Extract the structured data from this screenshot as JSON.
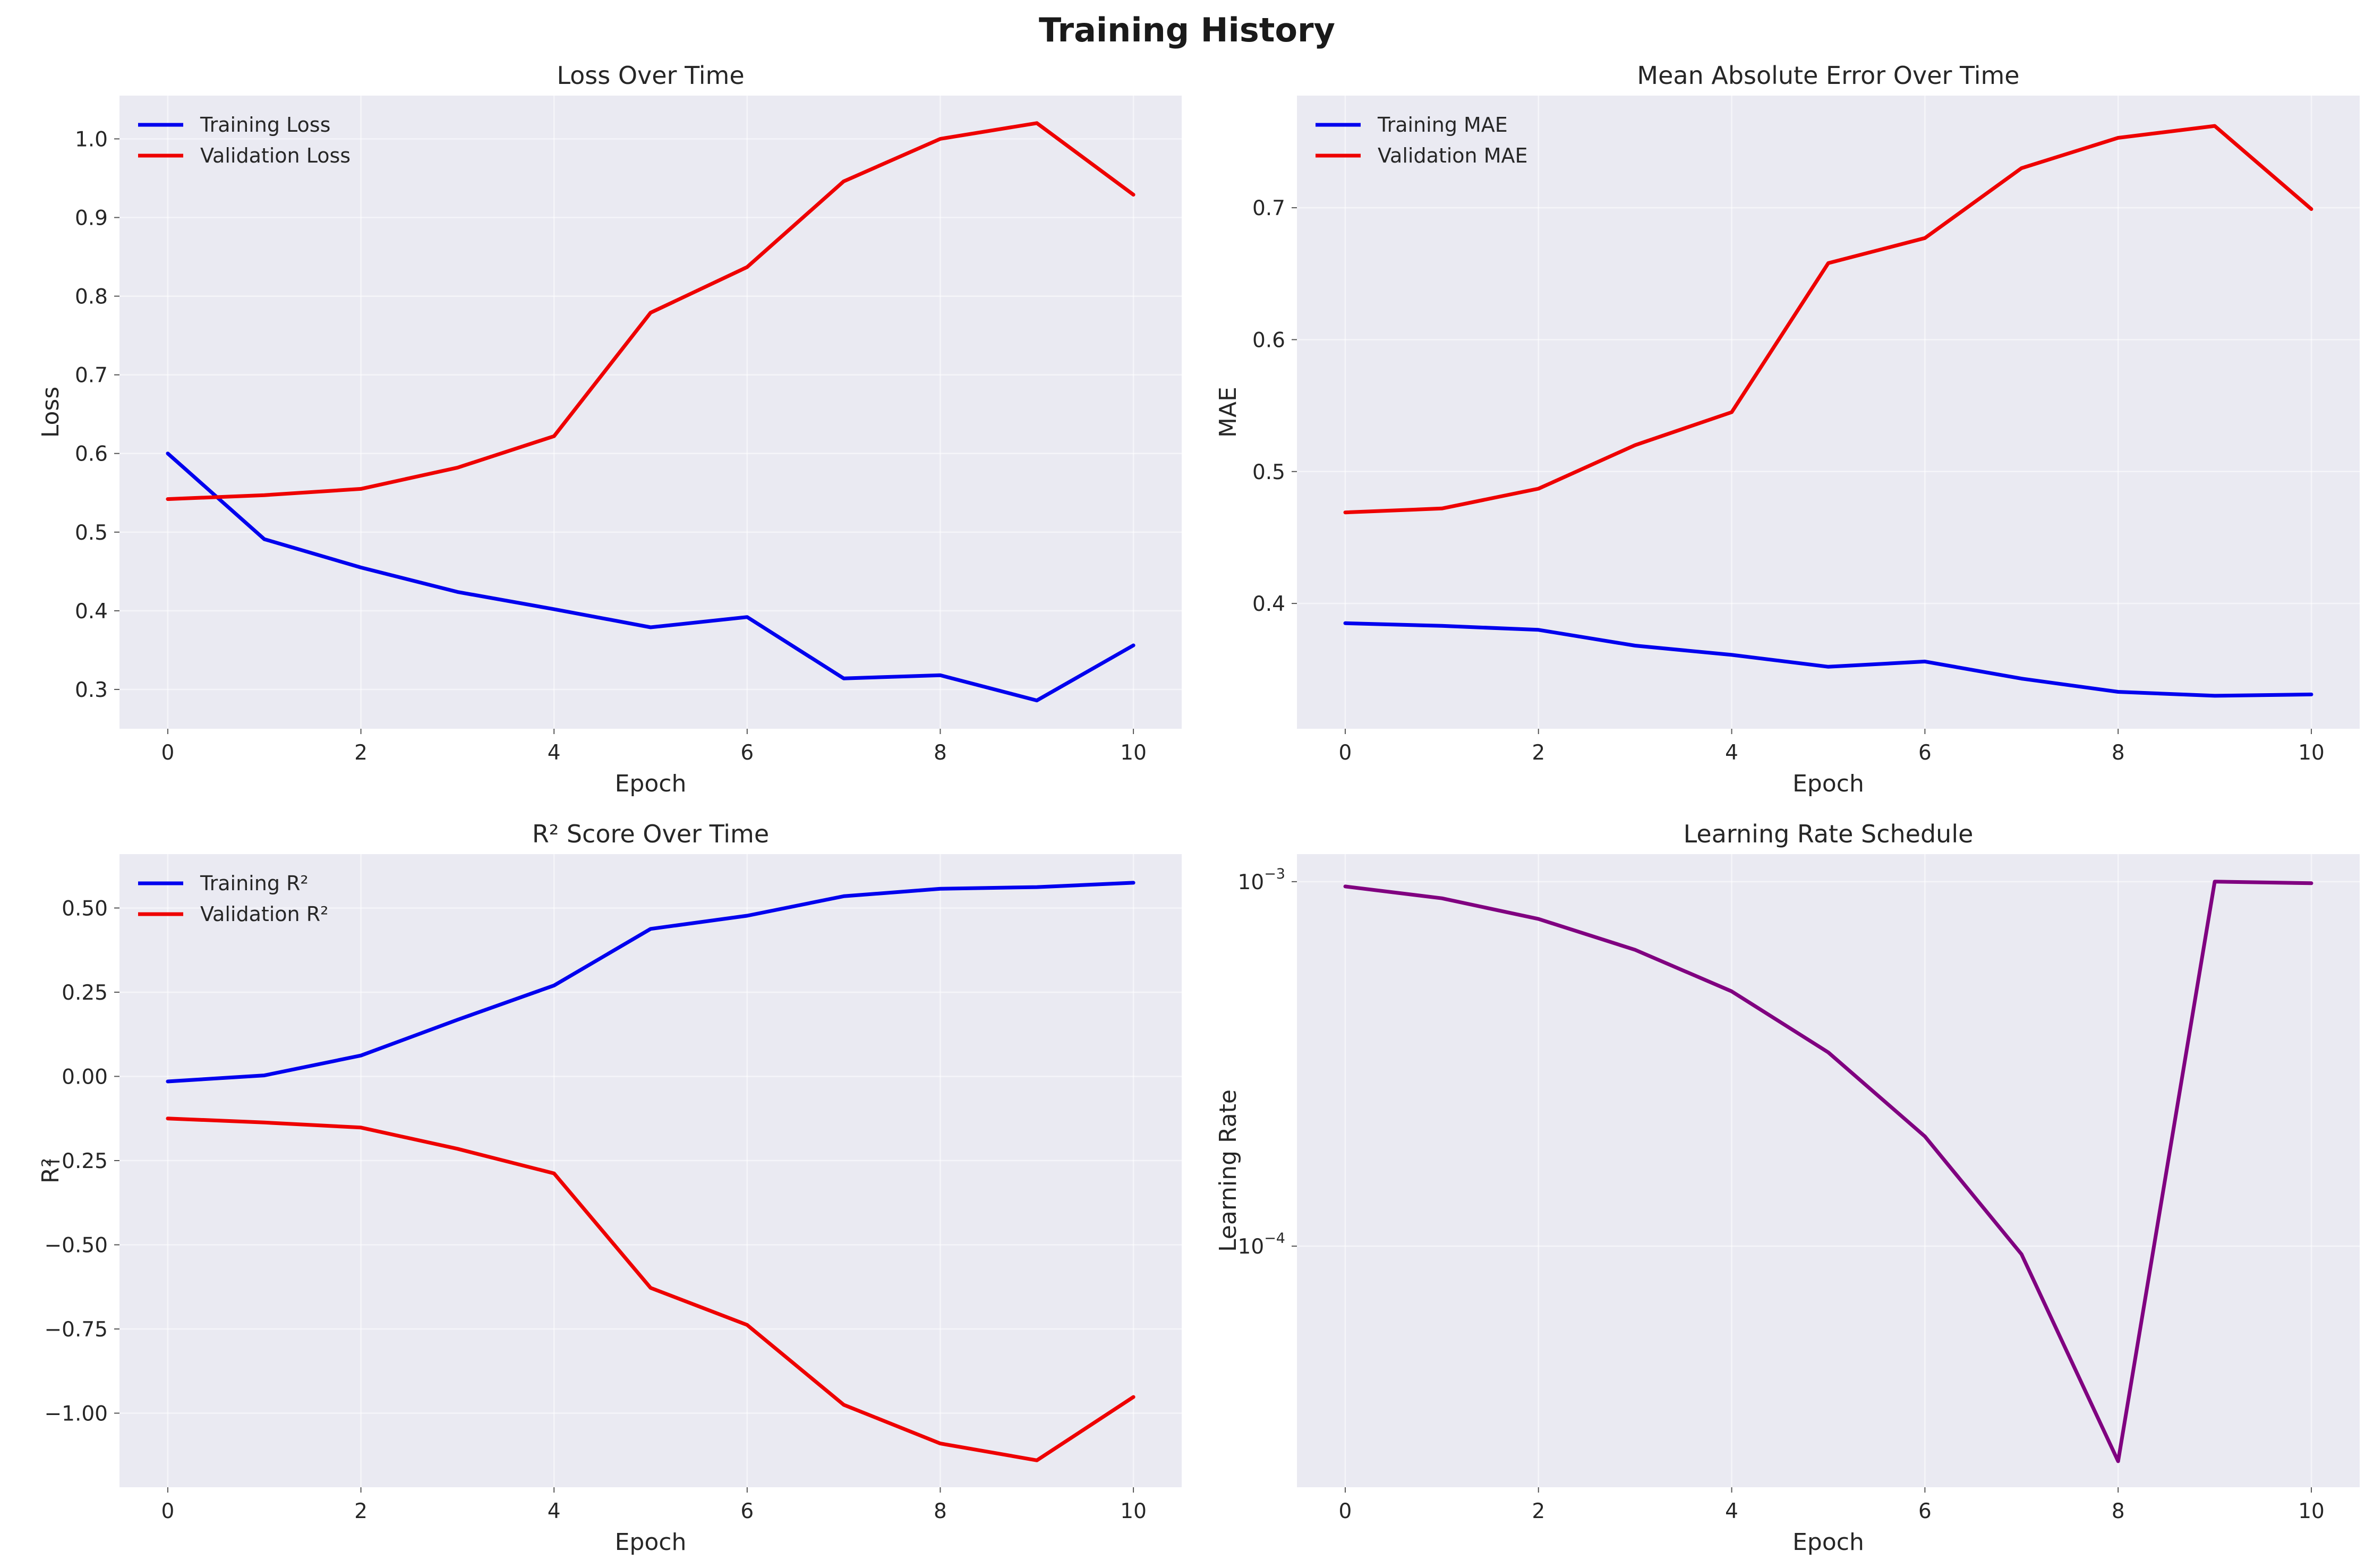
{
  "figure": {
    "title": "Training History"
  },
  "chart_data": [
    {
      "type": "line",
      "title": "Loss Over Time",
      "xlabel": "Epoch",
      "ylabel": "Loss",
      "x": [
        0,
        1,
        2,
        3,
        4,
        5,
        6,
        7,
        8,
        9,
        10
      ],
      "xlim": [
        -0.5,
        10.5
      ],
      "ylim": [
        0.25,
        1.055
      ],
      "xticks": [
        0,
        2,
        4,
        6,
        8,
        10
      ],
      "yticks": [
        0.3,
        0.4,
        0.5,
        0.6,
        0.7,
        0.8,
        0.9,
        1.0
      ],
      "yscale": "linear",
      "grid": true,
      "legend": "top-left",
      "series": [
        {
          "name": "Training Loss",
          "color": "#0000ee",
          "values": [
            0.6,
            0.491,
            0.455,
            0.424,
            0.402,
            0.379,
            0.392,
            0.314,
            0.318,
            0.286,
            0.356
          ]
        },
        {
          "name": "Validation Loss",
          "color": "#ee0000",
          "values": [
            0.542,
            0.547,
            0.555,
            0.582,
            0.622,
            0.779,
            0.837,
            0.946,
            1.0,
            1.02,
            0.929
          ]
        }
      ]
    },
    {
      "type": "line",
      "title": "Mean Absolute Error Over Time",
      "xlabel": "Epoch",
      "ylabel": "MAE",
      "x": [
        0,
        1,
        2,
        3,
        4,
        5,
        6,
        7,
        8,
        9,
        10
      ],
      "xlim": [
        -0.5,
        10.5
      ],
      "ylim": [
        0.305,
        0.785
      ],
      "xticks": [
        0,
        2,
        4,
        6,
        8,
        10
      ],
      "yticks": [
        0.4,
        0.5,
        0.6,
        0.7
      ],
      "yscale": "linear",
      "grid": true,
      "legend": "top-left",
      "series": [
        {
          "name": "Training MAE",
          "color": "#0000ee",
          "values": [
            0.385,
            0.383,
            0.38,
            0.368,
            0.361,
            0.352,
            0.356,
            0.343,
            0.333,
            0.33,
            0.331
          ]
        },
        {
          "name": "Validation MAE",
          "color": "#ee0000",
          "values": [
            0.469,
            0.472,
            0.487,
            0.52,
            0.545,
            0.658,
            0.677,
            0.73,
            0.753,
            0.762,
            0.699
          ]
        }
      ]
    },
    {
      "type": "line",
      "title": "R² Score Over Time",
      "xlabel": "Epoch",
      "ylabel": "R²",
      "x": [
        0,
        1,
        2,
        3,
        4,
        5,
        6,
        7,
        8,
        9,
        10
      ],
      "xlim": [
        -0.5,
        10.5
      ],
      "ylim": [
        -1.22,
        0.66
      ],
      "xticks": [
        0,
        2,
        4,
        6,
        8,
        10
      ],
      "yticks": [
        0.5,
        0.25,
        0.0,
        -0.25,
        -0.5,
        -0.75,
        -1.0
      ],
      "ytick_labels": [
        "0.50",
        "0.25",
        "0.00",
        "−0.25",
        "−0.50",
        "−0.75",
        "−1.00"
      ],
      "yscale": "linear",
      "grid": true,
      "legend": "top-left",
      "series": [
        {
          "name": "Training R²",
          "color": "#0000ee",
          "values": [
            -0.015,
            0.003,
            0.062,
            0.168,
            0.27,
            0.438,
            0.477,
            0.535,
            0.557,
            0.562,
            0.575
          ]
        },
        {
          "name": "Validation R²",
          "color": "#ee0000",
          "values": [
            -0.125,
            -0.137,
            -0.152,
            -0.215,
            -0.288,
            -0.628,
            -0.738,
            -0.975,
            -1.09,
            -1.14,
            -0.952
          ]
        }
      ]
    },
    {
      "type": "line",
      "title": "Learning Rate Schedule",
      "xlabel": "Epoch",
      "ylabel": "Learning Rate",
      "x": [
        0,
        1,
        2,
        3,
        4,
        5,
        6,
        7,
        8,
        9,
        10
      ],
      "xlim": [
        -0.5,
        10.5
      ],
      "ylim": [
        2.18e-05,
        0.00119
      ],
      "xticks": [
        0,
        2,
        4,
        6,
        8,
        10
      ],
      "yticks": [
        0.001,
        0.0001
      ],
      "ytick_labels": [
        [
          "10",
          "−3"
        ],
        [
          "10",
          "−4"
        ]
      ],
      "yscale": "log",
      "grid": true,
      "legend": "none",
      "series": [
        {
          "color": "#800080",
          "values": [
            0.00097,
            0.0009,
            0.00079,
            0.00065,
            0.0005,
            0.00034,
            0.0002,
            9.5e-05,
            2.57e-05,
            0.001,
            0.00099
          ]
        }
      ]
    }
  ]
}
